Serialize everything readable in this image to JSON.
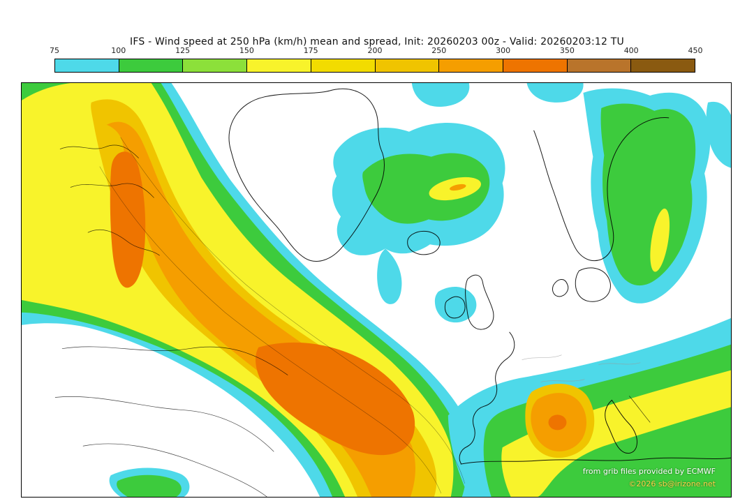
{
  "title": "IFS - Wind speed at 250 hPa (km/h) mean and spread, Init: 20260203 00z - Valid: 20260203:12 TU",
  "colorbar": {
    "tick_labels": [
      "75",
      "100",
      "125",
      "150",
      "175",
      "200",
      "250",
      "300",
      "350",
      "400",
      "450"
    ],
    "segment_colors": [
      "#4ed9e9",
      "#3dcb3d",
      "#8ce03a",
      "#f8f32b",
      "#f2dc00",
      "#f0c400",
      "#f59e00",
      "#ee7400",
      "#b9742b",
      "#8a5a10"
    ]
  },
  "map_colors": {
    "cyan": "#4ed9e9",
    "green": "#3dcb3d",
    "yellow": "#f8f32b",
    "amber": "#f0c400",
    "orange": "#f59e00",
    "deep_orange": "#ee7400",
    "background": "#ffffff",
    "coast": "#000000"
  },
  "attribution": {
    "line1": "from grib files provided by ECMWF",
    "line2": "©2026 sb@irizone.net",
    "line1_color": "#ffffff",
    "line2_color": "#ffd24a"
  },
  "chart_data": {
    "type": "heatmap",
    "subtype": "filled-contour-weather-map",
    "model": "IFS",
    "variable": "Wind speed at 250 hPa, ensemble mean and spread",
    "unit": "km/h",
    "init": "20260203 00z",
    "valid": "20260203:12 TU",
    "region": "North Atlantic / Greenland / Europe / Mediterranean",
    "levels": [
      75,
      100,
      125,
      150,
      175,
      200,
      250,
      300,
      350,
      400,
      450
    ],
    "legend_position": "top",
    "features": [
      {
        "name": "main-atlantic-jet",
        "description": "Broad curved jet streak from the NW corner sweeping SE across the central Atlantic toward Iberia, core 300-350 km/h"
      },
      {
        "name": "greenland-iceland-lobe",
        "description": "Secondary maximum SE of Greenland near Iceland, 100-250 km/h with small 250+ core"
      },
      {
        "name": "eastern-europe-band",
        "description": "Meridional band over eastern Europe, 100-175 km/h"
      },
      {
        "name": "mediterranean-jet",
        "description": "Jet over the western Mediterranean / North Africa with 250-300 km/h core and broad 100-200 km/h envelope"
      }
    ]
  }
}
